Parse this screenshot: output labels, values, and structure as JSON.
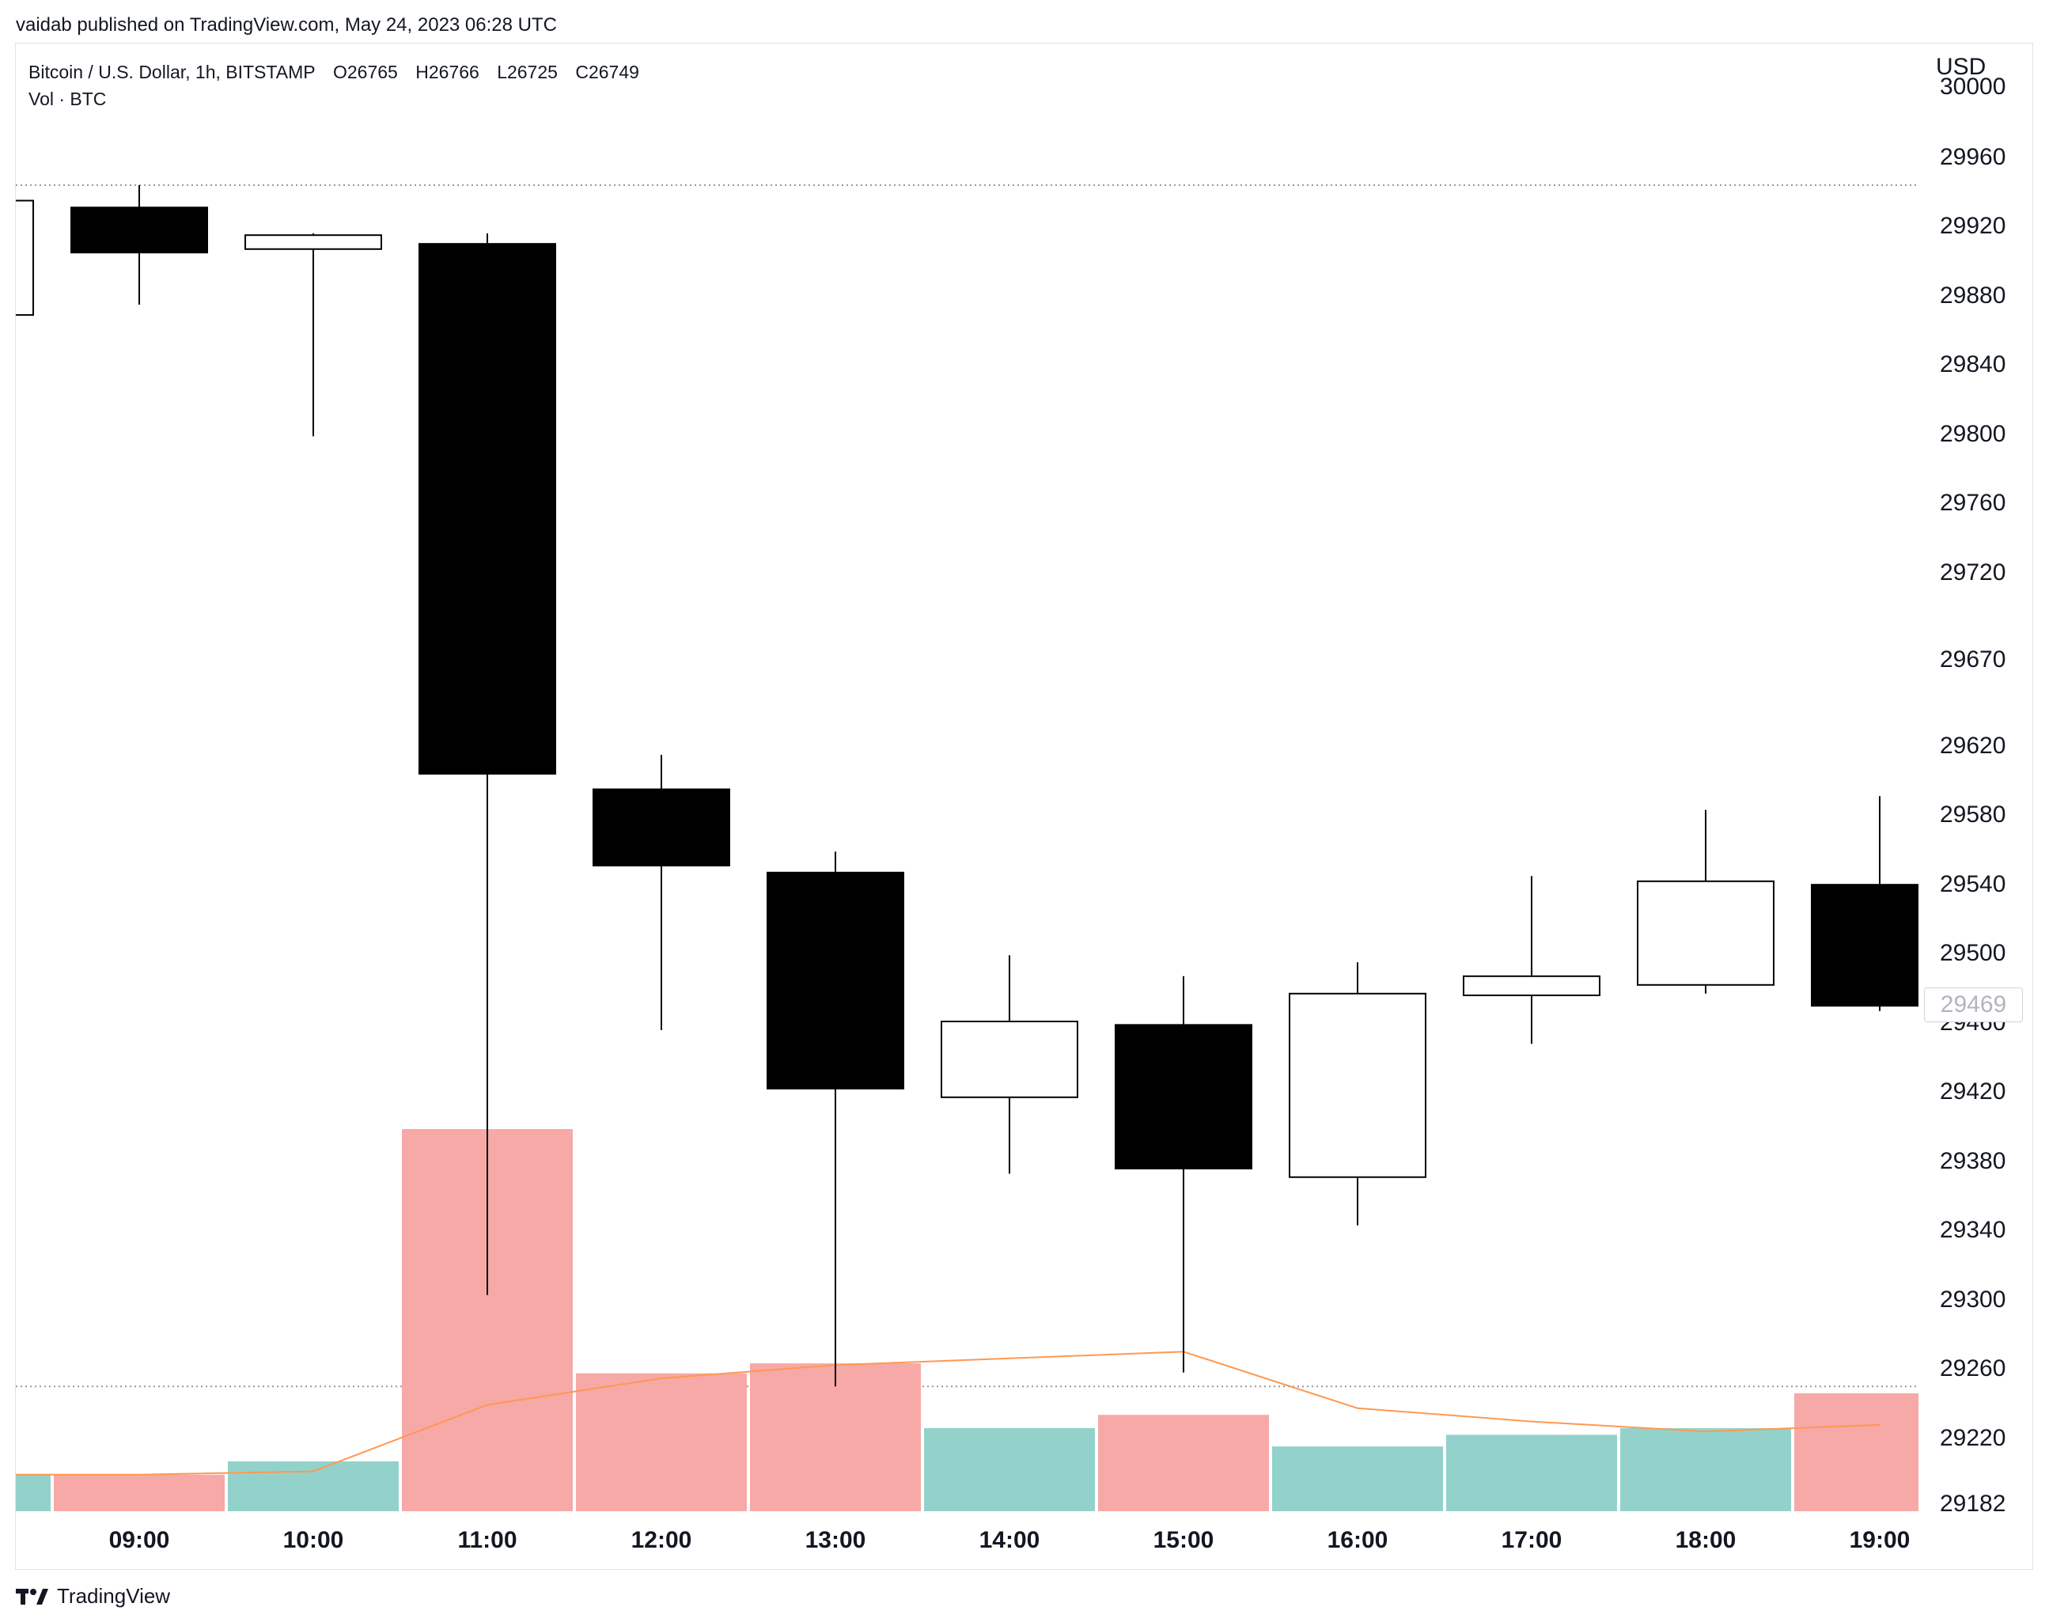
{
  "header": {
    "published": "vaidab published on TradingView.com, May 24, 2023 06:28 UTC"
  },
  "legend": {
    "symbol": "Bitcoin / U.S. Dollar, 1h, BITSTAMP",
    "open": "O26765",
    "high": "H26766",
    "low": "L26725",
    "close": "C26749",
    "volume_label": "Vol · BTC"
  },
  "axis": {
    "currency": "USD",
    "last_price_badge": "29469"
  },
  "footer": {
    "brand": "TradingView",
    "logo_icon": "tradingview-logo-icon"
  },
  "colors": {
    "candle_down": "#000000",
    "candle_up": "#ffffff",
    "volume_down": "#f7a9a7",
    "volume_up": "#93d2cb",
    "volume_ma": "#ff9850",
    "grid_dotted": "#9598a1"
  },
  "chart_data": {
    "type": "candlestick",
    "title": "Bitcoin / U.S. Dollar, 1h, BITSTAMP",
    "x_ticks": [
      "09:00",
      "10:00",
      "11:00",
      "12:00",
      "13:00",
      "14:00",
      "15:00",
      "16:00",
      "17:00",
      "18:00",
      "19:00"
    ],
    "y_ticks": [
      30000,
      29960,
      29920,
      29880,
      29840,
      29800,
      29760,
      29720,
      29670,
      29620,
      29580,
      29540,
      29500,
      29460,
      29420,
      29380,
      29340,
      29300,
      29260,
      29220,
      29182
    ],
    "ylim": [
      29182,
      30000
    ],
    "grid": false,
    "candles": [
      {
        "time": "08:00",
        "open": 29934,
        "high": 29934,
        "close": 29868,
        "low": 29868,
        "direction": "up",
        "partial": true
      },
      {
        "time": "09:00",
        "open": 29930,
        "high": 29943,
        "close": 29904,
        "low": 29874,
        "direction": "down"
      },
      {
        "time": "10:00",
        "open": 29906,
        "high": 29915,
        "close": 29914,
        "low": 29798,
        "direction": "up"
      },
      {
        "time": "11:00",
        "open": 29909,
        "high": 29915,
        "close": 29603,
        "low": 29302,
        "direction": "down"
      },
      {
        "time": "12:00",
        "open": 29594,
        "high": 29614,
        "close": 29550,
        "low": 29455,
        "direction": "down"
      },
      {
        "time": "13:00",
        "open": 29546,
        "high": 29558,
        "close": 29421,
        "low": 29249,
        "direction": "down"
      },
      {
        "time": "14:00",
        "open": 29416,
        "high": 29498,
        "close": 29460,
        "low": 29372,
        "direction": "up"
      },
      {
        "time": "15:00",
        "open": 29458,
        "high": 29486,
        "close": 29375,
        "low": 29257,
        "direction": "down"
      },
      {
        "time": "16:00",
        "open": 29370,
        "high": 29494,
        "close": 29476,
        "low": 29342,
        "direction": "up"
      },
      {
        "time": "17:00",
        "open": 29475,
        "high": 29544,
        "close": 29486,
        "low": 29447,
        "direction": "up"
      },
      {
        "time": "18:00",
        "open": 29481,
        "high": 29582,
        "close": 29541,
        "low": 29476,
        "direction": "up"
      },
      {
        "time": "19:00",
        "open": 29539,
        "high": 29590,
        "close": 29469,
        "low": 29466,
        "direction": "down"
      }
    ],
    "volume_relative": [
      0.22,
      0.22,
      0.3,
      2.3,
      0.83,
      0.89,
      0.5,
      0.58,
      0.39,
      0.46,
      0.5,
      0.71
    ],
    "volume_directions": [
      "up",
      "down",
      "up",
      "down",
      "down",
      "down",
      "up",
      "down",
      "up",
      "up",
      "up",
      "down"
    ],
    "volume_ma_relative": [
      0.22,
      0.22,
      0.24,
      0.64,
      0.8,
      0.88,
      0.92,
      0.96,
      0.62,
      0.54,
      0.48,
      0.52
    ],
    "horizontal_lines": [
      29943,
      29249
    ]
  }
}
